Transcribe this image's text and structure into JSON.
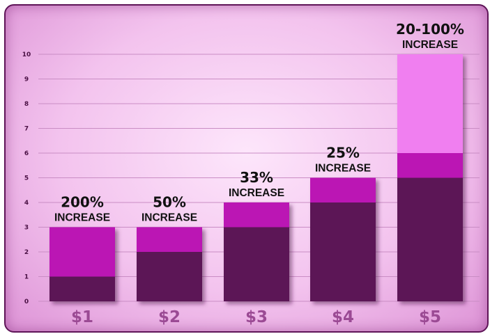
{
  "chart_data": {
    "type": "bar",
    "stacked": true,
    "categories": [
      "$1",
      "$2",
      "$3",
      "$4",
      "$5"
    ],
    "series": [
      {
        "values": [
          1,
          2,
          3,
          4,
          5
        ]
      },
      {
        "values": [
          2,
          1,
          1,
          1,
          1
        ]
      },
      {
        "values": [
          0,
          0,
          0,
          0,
          4
        ]
      }
    ],
    "annotations": [
      {
        "category": "$1",
        "line1": "200%",
        "line2": "INCREASE"
      },
      {
        "category": "$2",
        "line1": "50%",
        "line2": "INCREASE"
      },
      {
        "category": "$3",
        "line1": "33%",
        "line2": "INCREASE"
      },
      {
        "category": "$4",
        "line1": "25%",
        "line2": "INCREASE"
      },
      {
        "category": "$5",
        "line1": "20-100%",
        "line2": "INCREASE"
      }
    ],
    "yticks": [
      "0",
      "1",
      "2",
      "3",
      "4",
      "5",
      "6",
      "7",
      "8",
      "9",
      "10"
    ],
    "ylim": [
      0,
      10
    ],
    "grid": true,
    "legend": "none",
    "title": "",
    "xlabel": "",
    "ylabel": ""
  },
  "colors": {
    "background_light": "#fde6fb",
    "background_edge": "#dd93d6",
    "border": "#5e1457",
    "bar_base": "#5b1257",
    "bar_increase": "#bb17b4",
    "bar_upper_range": "#f07ff0",
    "grid": "#c98dc4",
    "tick_text": "#4a1044",
    "category_text": "#9b4a94",
    "annotation_text": "#111111"
  }
}
